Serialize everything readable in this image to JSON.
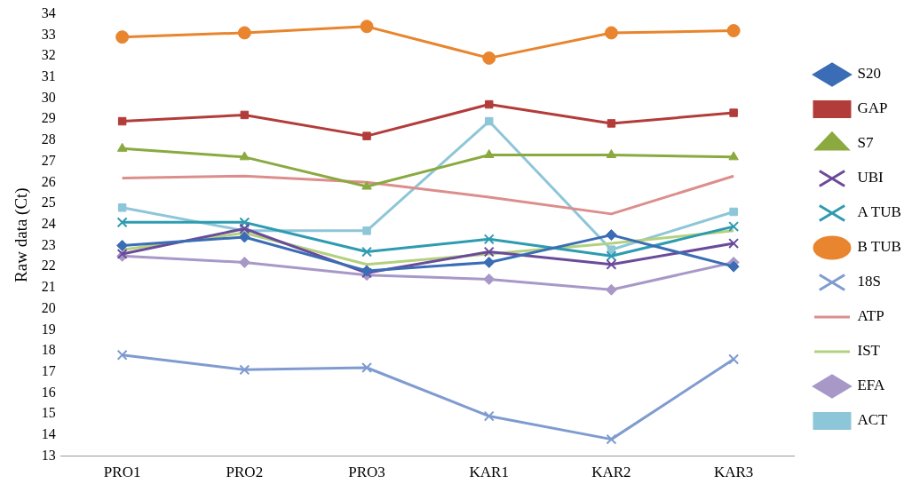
{
  "chart_data": {
    "type": "line",
    "ylabel": "Raw data (Ct)",
    "categories": [
      "PRO1",
      "PRO2",
      "PRO3",
      "KAR1",
      "KAR2",
      "KAR3"
    ],
    "ylim": [
      13,
      34
    ],
    "yticks": [
      13,
      14,
      15,
      16,
      17,
      18,
      19,
      20,
      21,
      22,
      23,
      24,
      25,
      26,
      27,
      28,
      29,
      30,
      31,
      32,
      33,
      34
    ],
    "grid": false,
    "legend": "right",
    "series": [
      {
        "name": "S20",
        "color": "#3a6db5",
        "marker": "diamond",
        "values": [
          23.0,
          23.4,
          21.8,
          22.2,
          23.5,
          22.0
        ]
      },
      {
        "name": "GAP",
        "color": "#b23c3a",
        "marker": "square",
        "values": [
          28.9,
          29.2,
          28.2,
          29.7,
          28.8,
          29.3
        ]
      },
      {
        "name": "S7",
        "color": "#8aaa40",
        "marker": "triangle",
        "values": [
          27.6,
          27.2,
          25.8,
          27.3,
          27.3,
          27.2
        ]
      },
      {
        "name": "UBI",
        "color": "#6a4b9a",
        "marker": "cross",
        "values": [
          22.6,
          23.8,
          21.7,
          22.7,
          22.1,
          23.1
        ]
      },
      {
        "name": "A TUB",
        "color": "#2e9bb0",
        "marker": "cross",
        "values": [
          24.1,
          24.1,
          22.7,
          23.3,
          22.5,
          23.9
        ]
      },
      {
        "name": "B TUB",
        "color": "#e8852e",
        "marker": "circle",
        "values": [
          32.9,
          33.1,
          33.4,
          31.9,
          33.1,
          33.2
        ]
      },
      {
        "name": "18S",
        "color": "#7f9bd0",
        "marker": "cross",
        "values": [
          17.8,
          17.1,
          17.2,
          14.9,
          13.8,
          17.6
        ]
      },
      {
        "name": "ATP",
        "color": "#dc8e8c",
        "marker": "none",
        "values": [
          26.2,
          26.3,
          26.0,
          25.3,
          24.5,
          26.3
        ]
      },
      {
        "name": "IST",
        "color": "#b4d17f",
        "marker": "none",
        "values": [
          22.8,
          23.6,
          22.1,
          22.6,
          23.1,
          23.7
        ]
      },
      {
        "name": "EFA",
        "color": "#a898c8",
        "marker": "diamond",
        "values": [
          22.5,
          22.2,
          21.6,
          21.4,
          20.9,
          22.2
        ]
      },
      {
        "name": "ACT",
        "color": "#8dc6d8",
        "marker": "square",
        "values": [
          24.8,
          23.7,
          23.7,
          28.9,
          22.8,
          24.6
        ]
      }
    ]
  }
}
